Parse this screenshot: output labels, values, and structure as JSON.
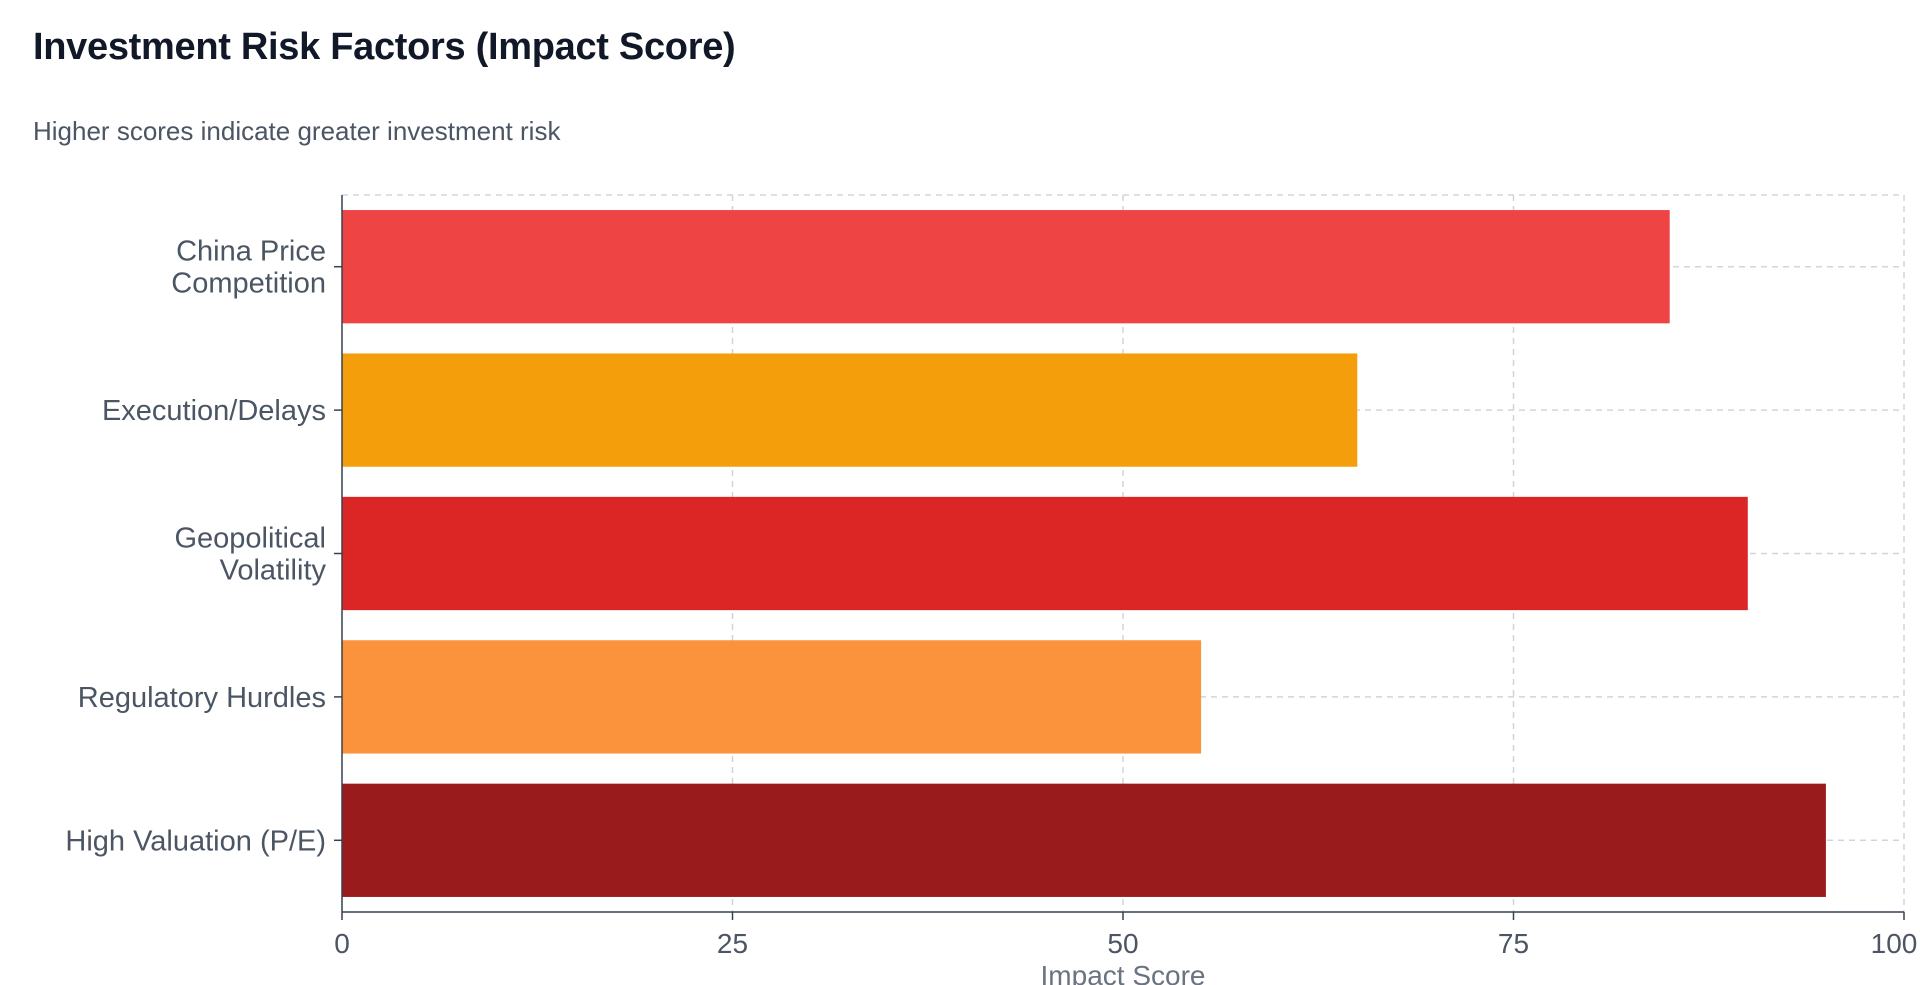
{
  "chart_data": {
    "type": "bar",
    "orientation": "horizontal",
    "title": "Investment Risk Factors (Impact Score)",
    "subtitle": "Higher scores indicate greater investment risk",
    "xlabel": "Impact Score",
    "ylabel": "",
    "xlim": [
      0,
      100
    ],
    "xticks": [
      0,
      25,
      50,
      75,
      100
    ],
    "grid": true,
    "categories": [
      [
        "China Price",
        "Competition"
      ],
      [
        "Execution/Delays"
      ],
      [
        "Geopolitical",
        "Volatility"
      ],
      [
        "Regulatory Hurdles"
      ],
      [
        "High Valuation (P/E)"
      ]
    ],
    "values": [
      85,
      65,
      90,
      55,
      95
    ],
    "colors": [
      "#ef4444",
      "#f59e0b",
      "#dc2626",
      "#fb923c",
      "#991b1b"
    ]
  }
}
